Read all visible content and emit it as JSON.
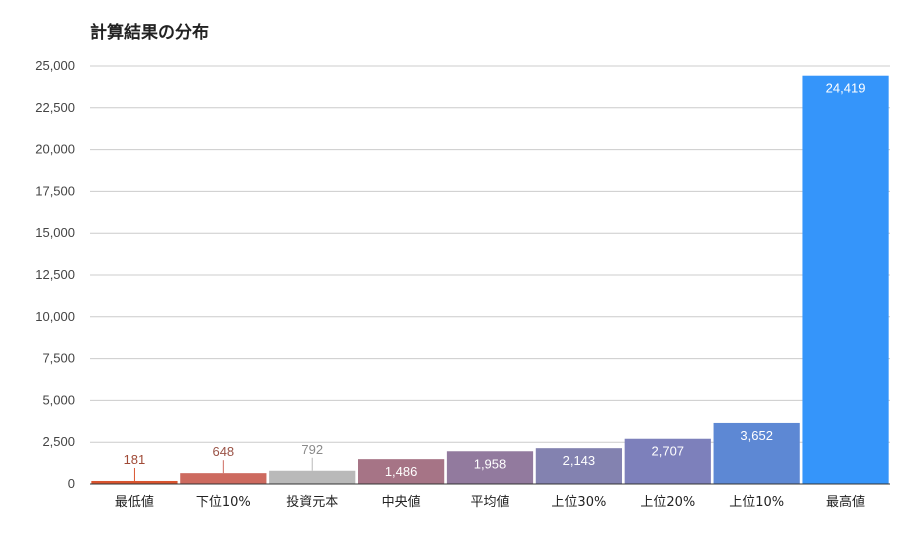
{
  "chart_data": {
    "type": "bar",
    "title": "計算結果の分布",
    "xlabel": "",
    "ylabel": "",
    "ylim": [
      0,
      25000
    ],
    "yticks": [
      "0",
      "2,500",
      "5,000",
      "7,500",
      "10,000",
      "12,500",
      "15,000",
      "17,500",
      "20,000",
      "22,500",
      "25,000"
    ],
    "grid": true,
    "categories": [
      "最低値",
      "下位10%",
      "投資元本",
      "中央値",
      "平均値",
      "上位30%",
      "上位20%",
      "上位10%",
      "最高値"
    ],
    "values": [
      181,
      648,
      792,
      1486,
      1958,
      2143,
      2707,
      3652,
      24419
    ],
    "data_labels": [
      "181",
      "648",
      "792",
      "1,486",
      "1,958",
      "2,143",
      "2,707",
      "3,652",
      "24,419"
    ],
    "colors": [
      "#d9542f",
      "#cd6a5f",
      "#b9b9b9",
      "#a67486",
      "#927a9e",
      "#8382b0",
      "#7d80bb",
      "#5d88d4",
      "#3595fa"
    ],
    "label_colors": [
      "#a04a36",
      "#9a5347",
      "#8a8a8a",
      "#ffffff",
      "#ffffff",
      "#ffffff",
      "#ffffff",
      "#ffffff",
      "#ffffff"
    ]
  }
}
